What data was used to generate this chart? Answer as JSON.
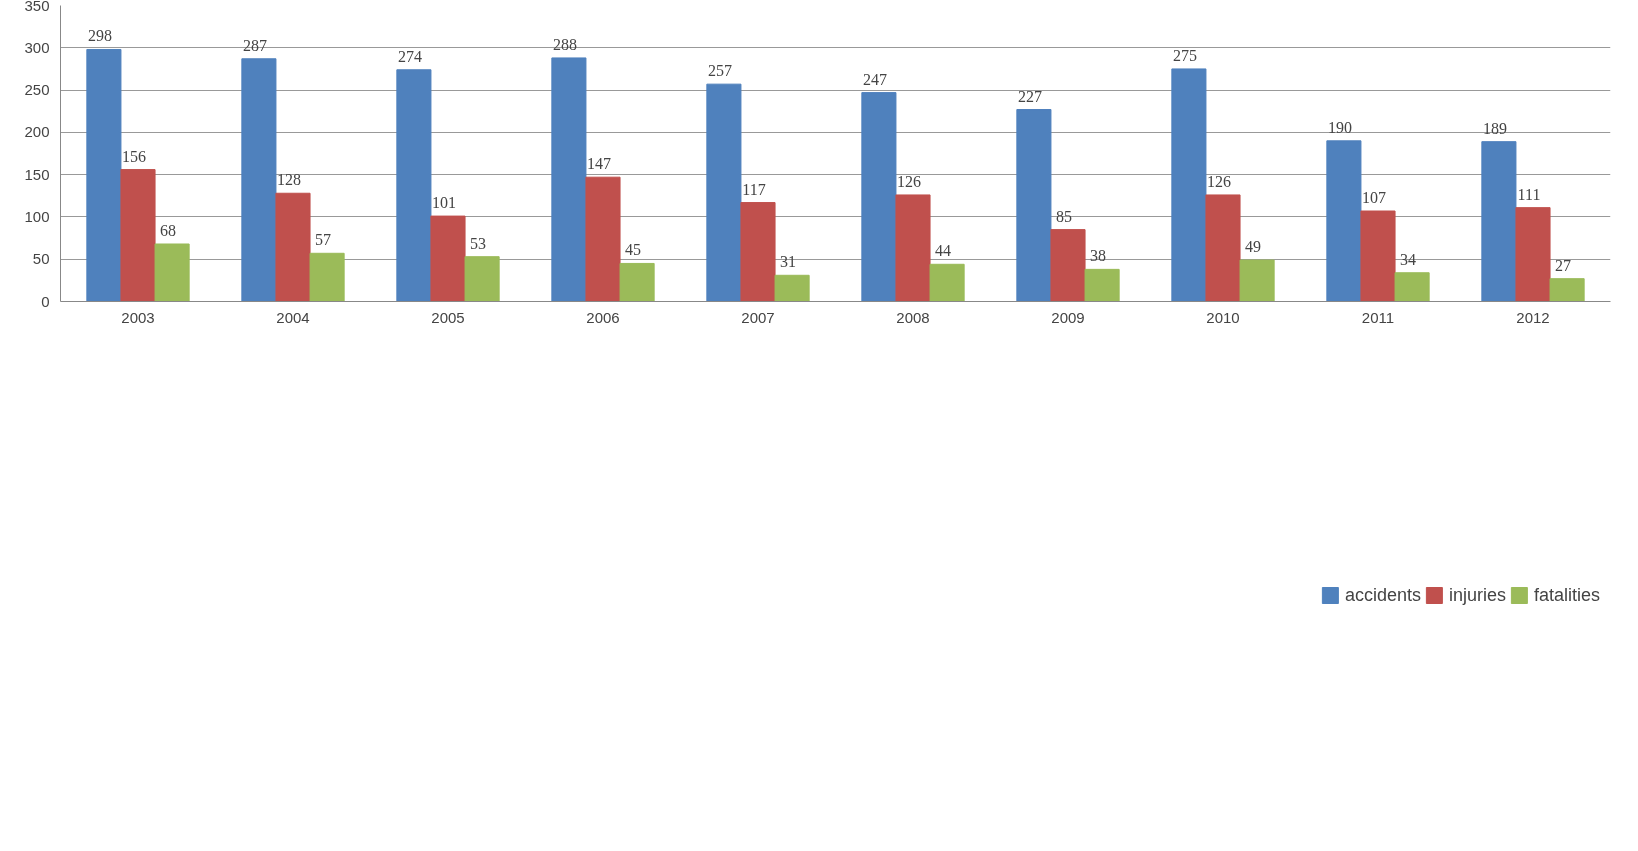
{
  "chart_data": {
    "type": "bar",
    "categories": [
      "2003",
      "2004",
      "2005",
      "2006",
      "2007",
      "2008",
      "2009",
      "2010",
      "2011",
      "2012"
    ],
    "series": [
      {
        "name": "accidents",
        "color": "#4f81bd",
        "values": [
          298,
          287,
          274,
          288,
          257,
          247,
          227,
          275,
          190,
          189
        ]
      },
      {
        "name": "injuries",
        "color": "#c0504d",
        "values": [
          156,
          128,
          101,
          147,
          117,
          126,
          85,
          126,
          107,
          111
        ]
      },
      {
        "name": "fatalities",
        "color": "#9bbb59",
        "values": [
          68,
          57,
          53,
          45,
          31,
          44,
          38,
          49,
          34,
          27
        ]
      }
    ],
    "ylim": [
      0,
      350
    ],
    "yticks": [
      0,
      50,
      100,
      150,
      200,
      250,
      300,
      350
    ],
    "grid": "y",
    "legend": "bottom",
    "data_labels": true
  }
}
